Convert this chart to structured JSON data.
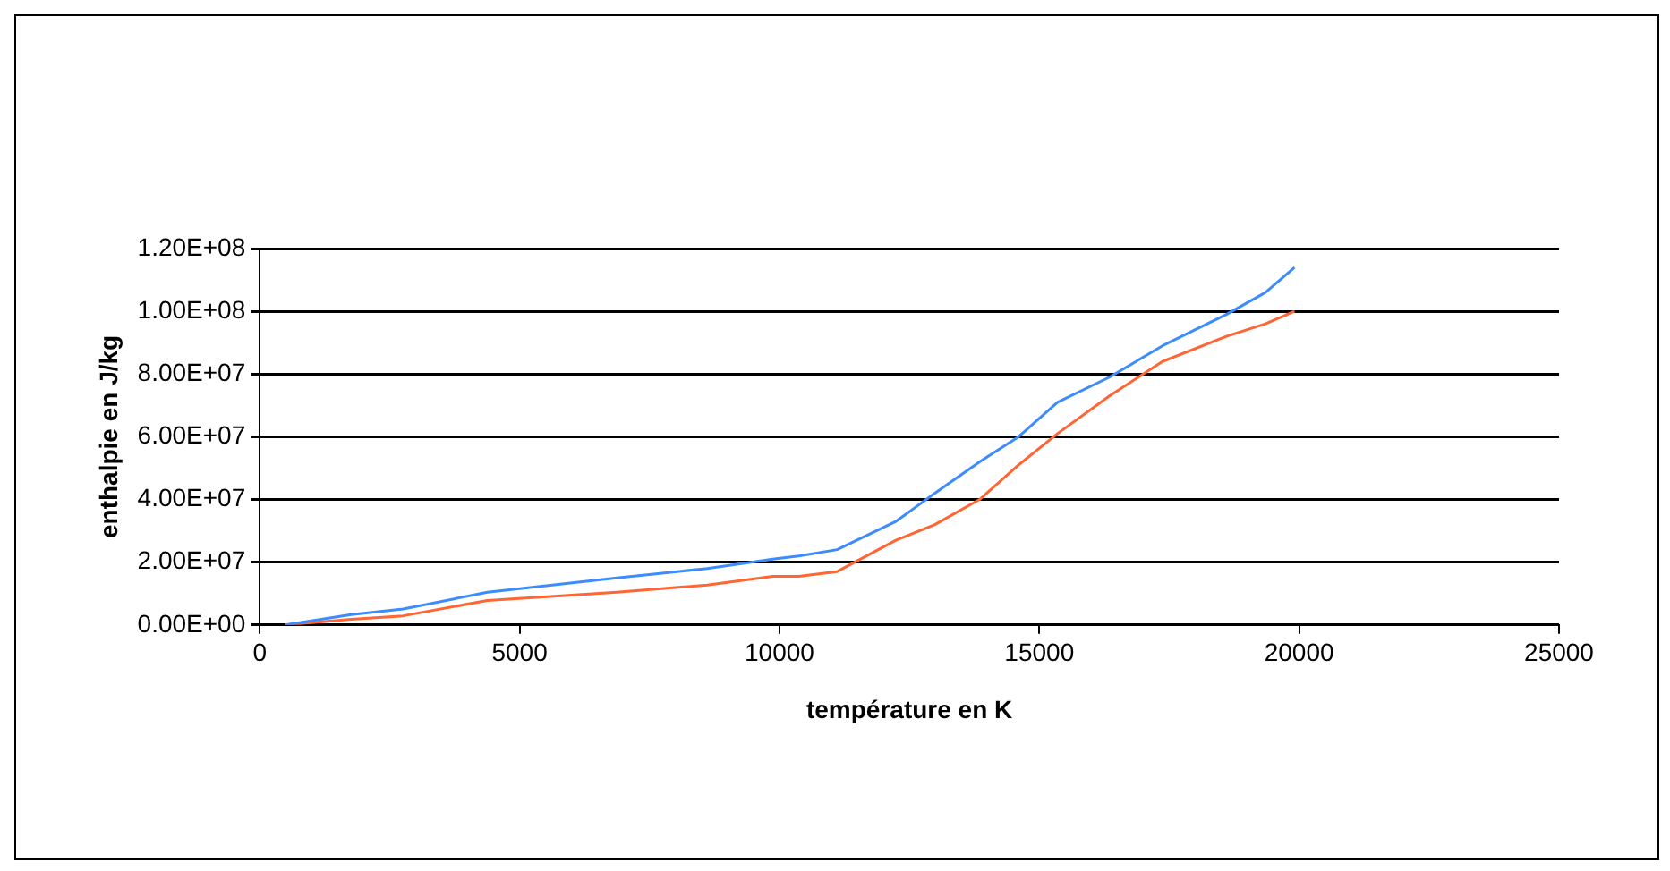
{
  "chart_data": {
    "type": "line",
    "xlabel": "température en K",
    "ylabel": "enthalpie en J/kg",
    "xlim": [
      0,
      25000
    ],
    "xticks": [
      0,
      5000,
      10000,
      15000,
      20000,
      25000
    ],
    "ylim": [
      0,
      120000000
    ],
    "yticks": [
      {
        "value": 0,
        "label": "0.00E+00"
      },
      {
        "value": 20000000,
        "label": "2.00E+07"
      },
      {
        "value": 40000000,
        "label": "4.00E+07"
      },
      {
        "value": 60000000,
        "label": "6.00E+07"
      },
      {
        "value": 80000000,
        "label": "8.00E+07"
      },
      {
        "value": 100000000,
        "label": "1.00E+08"
      },
      {
        "value": 120000000,
        "label": "1.20E+08"
      }
    ],
    "grid": "y",
    "legend": false,
    "marker": "none",
    "line_style": "solid",
    "series": [
      {
        "color": "#3d8cff",
        "x": [
          490,
          1760,
          2760,
          4380,
          6870,
          8610,
          9870,
          10370,
          11110,
          12240,
          12990,
          13850,
          14600,
          15350,
          16350,
          17370,
          18600,
          19350,
          19910
        ],
        "values": [
          0,
          3300000,
          5100000,
          10400000,
          15000000,
          18000000,
          21000000,
          22000000,
          24000000,
          33000000,
          42000000,
          52000000,
          60000000,
          71000000,
          79000000,
          89000000,
          99000000,
          106000000,
          114000000
        ]
      },
      {
        "color": "#ff6633",
        "x": [
          490,
          1760,
          2760,
          4380,
          6870,
          8610,
          9870,
          10370,
          11110,
          12240,
          12990,
          13850,
          14600,
          15350,
          16350,
          17370,
          18600,
          19350,
          19910
        ],
        "values": [
          0,
          1800000,
          2900000,
          7800000,
          10400000,
          12700000,
          15500000,
          15500000,
          17000000,
          27000000,
          32000000,
          40000000,
          51000000,
          61000000,
          73000000,
          84000000,
          92000000,
          96000000,
          100000000
        ]
      }
    ]
  }
}
